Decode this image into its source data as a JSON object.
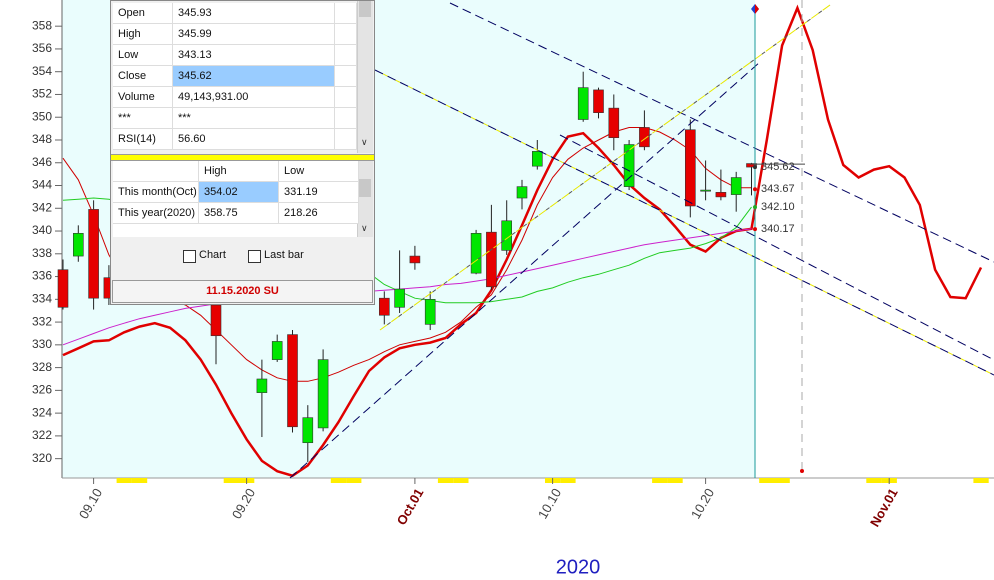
{
  "chart_data": {
    "type": "candlestick",
    "categories": [
      null,
      null,
      "09.10",
      null,
      null,
      null,
      null,
      null,
      null,
      null,
      null,
      null,
      "09.20",
      null,
      null,
      null,
      null,
      null,
      null,
      null,
      null,
      null,
      null,
      "Oct.01",
      null,
      null,
      null,
      null,
      null,
      null,
      null,
      null,
      "10.10",
      null,
      null,
      null,
      null,
      null,
      null,
      null,
      null,
      null,
      "10.20",
      null,
      null,
      null,
      null,
      null,
      null,
      null,
      null,
      null,
      null,
      null,
      "Nov.01",
      null,
      null,
      null,
      null,
      null,
      null
    ],
    "open": [
      336.6,
      337.8,
      341.9,
      335.9,
      null,
      null,
      null,
      null,
      null,
      null,
      333.5,
      null,
      null,
      325.8,
      328.7,
      330.9,
      321.4,
      322.7,
      null,
      null,
      null,
      334.1,
      333.3,
      337.8,
      331.8,
      null,
      null,
      336.3,
      339.9,
      338.3,
      342.9,
      345.7,
      null,
      null,
      349.8,
      352.4,
      350.8,
      343.9,
      349.1,
      null,
      null,
      348.9,
      343.5,
      343.4,
      343.2,
      345.93,
      null,
      null,
      null,
      null,
      null,
      null,
      null,
      null,
      null,
      null,
      null,
      null,
      null,
      null,
      null
    ],
    "high": [
      337.5,
      340.5,
      342.7,
      337.0,
      null,
      null,
      null,
      null,
      null,
      null,
      334.0,
      null,
      null,
      328.7,
      330.9,
      331.3,
      324.7,
      329.6,
      null,
      null,
      null,
      334.7,
      338.3,
      338.7,
      334.7,
      null,
      null,
      340.1,
      342.3,
      342.7,
      344.5,
      348.0,
      null,
      null,
      354.0,
      352.6,
      352.0,
      348.0,
      350.6,
      null,
      null,
      349.8,
      346.2,
      345.4,
      345.2,
      345.99,
      null,
      null,
      null,
      null,
      null,
      null,
      null,
      null,
      null,
      null,
      null,
      null,
      null,
      null,
      null
    ],
    "low": [
      333.1,
      337.3,
      333.1,
      333.5,
      null,
      null,
      null,
      null,
      null,
      null,
      328.3,
      null,
      null,
      321.9,
      328.5,
      322.3,
      319.7,
      322.4,
      null,
      null,
      null,
      331.8,
      332.8,
      336.6,
      331.3,
      null,
      null,
      336.2,
      334.8,
      337.9,
      341.9,
      345.4,
      null,
      null,
      349.6,
      349.9,
      347.1,
      343.6,
      347.1,
      null,
      null,
      341.2,
      342.7,
      342.7,
      341.7,
      343.13,
      null,
      null,
      null,
      null,
      null,
      null,
      null,
      null,
      null,
      null,
      null,
      null,
      null,
      null,
      null
    ],
    "close": [
      333.3,
      339.8,
      334.1,
      334.1,
      null,
      null,
      null,
      null,
      null,
      null,
      330.8,
      null,
      null,
      327.0,
      330.3,
      322.8,
      323.6,
      328.7,
      null,
      null,
      null,
      332.6,
      334.9,
      337.2,
      334.0,
      null,
      null,
      339.8,
      335.1,
      340.9,
      343.9,
      347.0,
      null,
      null,
      352.6,
      350.4,
      348.2,
      347.6,
      347.4,
      null,
      null,
      342.2,
      343.6,
      343.0,
      344.7,
      345.62,
      null,
      null,
      null,
      null,
      null,
      null,
      null,
      null,
      null,
      null,
      null,
      null,
      null,
      null,
      null
    ],
    "up_color": "#00e600",
    "down_color": "#e60000",
    "series": [
      {
        "color": "#e00000",
        "width": 2.5,
        "values": [
          329.1,
          329.7,
          330.3,
          330.4,
          331.1,
          331.6,
          331.9,
          331.5,
          330.4,
          328.7,
          326.5,
          324.0,
          321.7,
          319.8,
          318.9,
          318.5,
          319.4,
          321.2,
          323.2,
          325.5,
          327.7,
          328.9,
          329.7,
          330.0,
          330.2,
          330.6,
          331.8,
          332.8,
          334.8,
          337.5,
          340.5,
          343.6,
          346.3,
          348.3,
          348.6,
          347.3,
          345.8,
          344.1,
          342.9,
          341.9,
          340.4,
          338.8,
          338.2,
          339.4,
          340.0,
          340.2,
          348.0,
          356.3,
          359.6,
          355.9,
          349.8,
          345.8,
          344.7,
          345.4,
          345.7,
          344.7,
          342.3,
          336.6,
          334.2,
          334.1,
          336.8
        ]
      },
      {
        "color": "#d00000",
        "width": 1,
        "values": [
          346.4,
          344.5,
          341.4,
          337.9,
          335.7,
          334.8,
          334.4,
          334.0,
          333.5,
          332.6,
          331.3,
          330.0,
          328.7,
          327.8,
          327.1,
          326.8,
          326.8,
          327.1,
          327.6,
          328.2,
          328.7,
          329.4,
          330.0,
          330.3,
          330.6,
          331.1,
          332.0,
          333.3,
          334.4,
          336.6,
          339.2,
          342.3,
          344.7,
          346.3,
          347.3,
          348.0,
          348.7,
          349.1,
          349.1,
          348.7,
          348.0,
          347.1,
          345.5,
          344.5,
          343.8,
          343.8,
          null,
          null,
          null,
          null,
          null,
          null,
          null,
          null,
          null,
          null,
          null,
          null,
          null,
          null,
          null
        ]
      },
      {
        "color": "#22cc22",
        "width": 1,
        "values": [
          342.7,
          342.8,
          342.9,
          342.8,
          342.5,
          342.0,
          341.4,
          340.8,
          340.2,
          339.6,
          339.0,
          338.5,
          338.0,
          337.6,
          337.2,
          336.9,
          336.7,
          336.6,
          336.5,
          336.4,
          336.3,
          335.3,
          334.7,
          334.1,
          333.9,
          333.7,
          333.7,
          333.7,
          333.8,
          334.0,
          334.2,
          334.7,
          335.0,
          335.5,
          335.9,
          336.2,
          336.6,
          337.0,
          337.6,
          338.1,
          338.3,
          338.5,
          338.9,
          339.4,
          340.3,
          342.1,
          null,
          null,
          null,
          null,
          null,
          null,
          null,
          null,
          null,
          null,
          null,
          null,
          null,
          null,
          null
        ]
      },
      {
        "color": "#cc22cc",
        "width": 1,
        "values": [
          330.0,
          330.5,
          331.0,
          331.5,
          331.9,
          332.3,
          332.6,
          332.9,
          333.2,
          333.4,
          333.6,
          333.8,
          334.0,
          334.2,
          334.3,
          334.4,
          334.5,
          334.5,
          334.6,
          334.6,
          334.7,
          334.8,
          334.9,
          335.0,
          335.1,
          335.3,
          335.4,
          335.6,
          335.8,
          336.1,
          336.4,
          336.7,
          337.0,
          337.3,
          337.6,
          337.9,
          338.2,
          338.5,
          338.8,
          339.0,
          339.2,
          339.4,
          339.6,
          339.8,
          340.0,
          340.2,
          null,
          null,
          null,
          null,
          null,
          null,
          null,
          null,
          null,
          null,
          null,
          null,
          null,
          null,
          null
        ]
      }
    ],
    "price_labels": [
      {
        "value": 345.62,
        "label": "345.62",
        "color": "#333333"
      },
      {
        "value": 343.67,
        "label": "343.67",
        "color": "#e00000"
      },
      {
        "value": 342.1,
        "label": "342.10",
        "color": "#22aa22"
      },
      {
        "value": 340.17,
        "label": "340.17",
        "color": "#e00000"
      }
    ],
    "ylim": [
      318.3,
      360.3
    ],
    "yticks": [
      320,
      322,
      324,
      326,
      328,
      330,
      332,
      334,
      336,
      338,
      340,
      342,
      344,
      346,
      348,
      350,
      352,
      354,
      356,
      358
    ],
    "x_label": "2020"
  },
  "panel": {
    "info": [
      [
        "Open",
        "345.93"
      ],
      [
        "High",
        "345.99"
      ],
      [
        "Low",
        "343.13"
      ],
      [
        "Close",
        "345.62"
      ],
      [
        "Volume",
        "49,143,931.00"
      ],
      [
        "***",
        "***"
      ],
      [
        "RSI(14)",
        "56.60"
      ]
    ],
    "period_table": {
      "header": [
        "High",
        "Low"
      ],
      "rows": [
        [
          "This month(Oct)",
          "354.02",
          "331.19"
        ],
        [
          "This year(2020)",
          "358.75",
          "218.26"
        ]
      ]
    },
    "checkboxes": [
      "Chart",
      "Last bar"
    ],
    "date": "11.15.2020 SU"
  }
}
